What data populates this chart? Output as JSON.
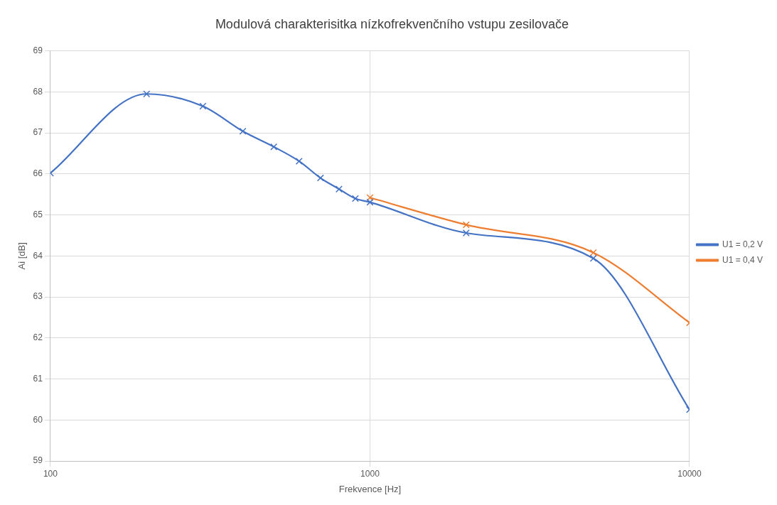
{
  "chart_data": {
    "type": "line",
    "title": "Modulová charakterisitka nízkofrekvenčního vstupu zesilovače",
    "xlabel": "Frekvence [Hz]",
    "ylabel": "Ai [dB]",
    "series": [
      {
        "name": "U1 = 0,2 V",
        "color": "#4472c4",
        "x": [
          100,
          200,
          300,
          400,
          500,
          600,
          700,
          800,
          900,
          1000,
          2000,
          5000,
          10000
        ],
        "values": [
          66.02,
          67.95,
          67.65,
          67.04,
          66.66,
          66.31,
          65.9,
          65.63,
          65.4,
          65.31,
          64.56,
          63.94,
          60.25
        ]
      },
      {
        "name": "U1 = 0,4 V",
        "color": "#ed7d31",
        "x": [
          1000,
          2000,
          5000,
          10000
        ],
        "values": [
          65.42,
          64.76,
          64.08,
          62.37
        ]
      }
    ],
    "log": "x",
    "xlim": [
      100,
      10000
    ],
    "xticks": [
      100,
      1000,
      10000
    ],
    "ylim": [
      59,
      69
    ],
    "yticks": [
      59,
      60,
      61,
      62,
      63,
      64,
      65,
      66,
      67,
      68,
      69
    ],
    "grid": true,
    "legend": "right",
    "marker": "cross",
    "line_style": "solid"
  }
}
